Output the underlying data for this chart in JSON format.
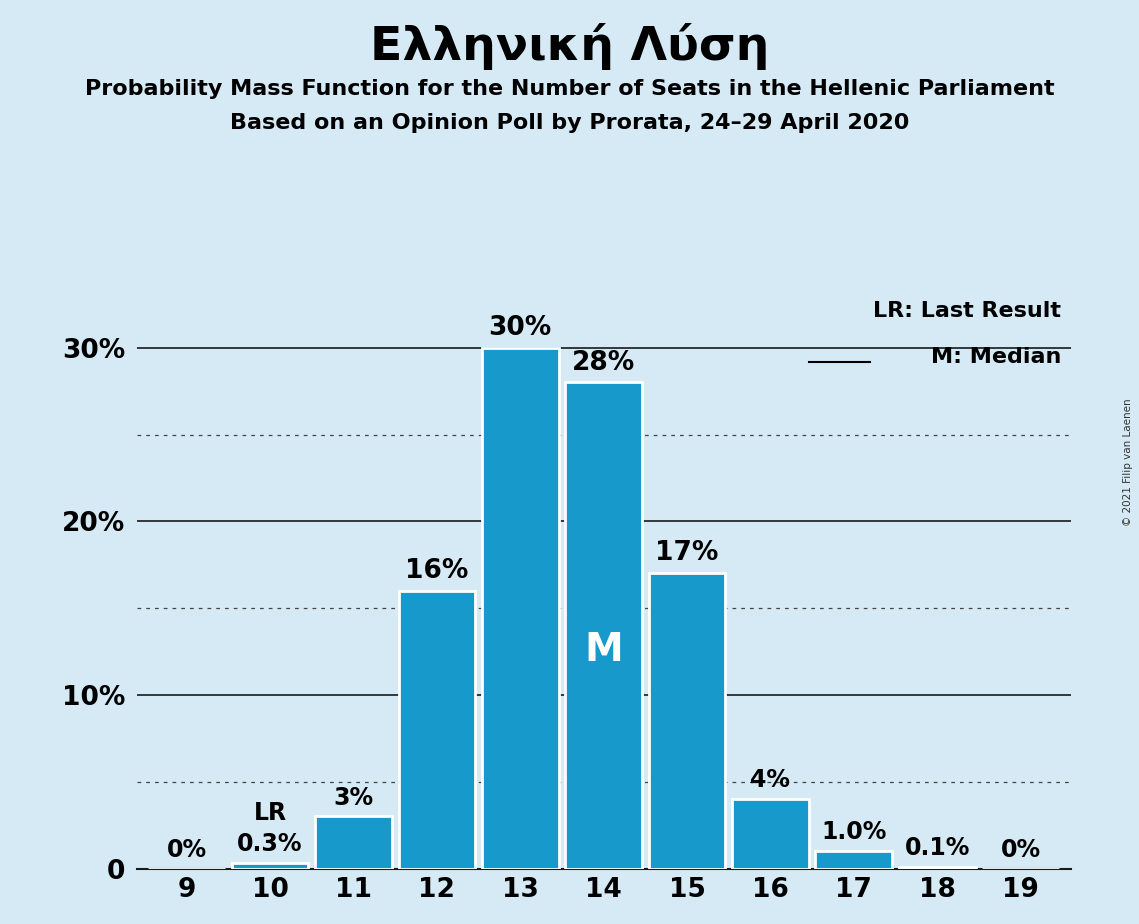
{
  "seats": [
    9,
    10,
    11,
    12,
    13,
    14,
    15,
    16,
    17,
    18,
    19
  ],
  "probabilities": [
    0.0,
    0.3,
    3.0,
    16.0,
    30.0,
    28.0,
    17.0,
    4.0,
    1.0,
    0.1,
    0.0
  ],
  "bar_color": "#1899cb",
  "background_color": "#d6eaf5",
  "title": "Ελληνική Λύση",
  "subtitle1": "Probability Mass Function for the Number of Seats in the Hellenic Parliament",
  "subtitle2": "Based on an Opinion Poll by Prorata, 24–29 April 2020",
  "copyright": "© 2021 Filip van Laenen",
  "lr_seat": 10,
  "median_seat": 14,
  "legend_lr": "LR: Last Result",
  "legend_m": "M: Median",
  "bar_labels": [
    "0%",
    "0.3%",
    "3%",
    "16%",
    "30%",
    "28%",
    "17%",
    "4%",
    "1.0%",
    "0.1%",
    "0%"
  ],
  "ytick_labels": [
    "0",
    "10%",
    "20%",
    "30%"
  ],
  "ytick_vals": [
    0,
    10,
    20,
    30
  ],
  "ydotted": [
    5,
    15,
    25
  ],
  "ylim": [
    0,
    33
  ],
  "xlim": [
    8.4,
    19.6
  ]
}
